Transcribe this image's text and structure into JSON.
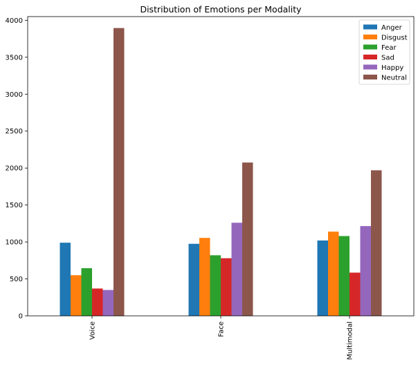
{
  "chart_data": {
    "type": "bar",
    "title": "Distribution of Emotions per Modality",
    "xlabel": "",
    "ylabel": "",
    "categories": [
      "Voice",
      "Face",
      "Multimodal"
    ],
    "ylim": [
      0,
      4050
    ],
    "yticks": [
      0,
      500,
      1000,
      1500,
      2000,
      2500,
      3000,
      3500,
      4000
    ],
    "grid": false,
    "legend_position": "top-right",
    "series": [
      {
        "name": "Anger",
        "color": "#1f77b4",
        "values": [
          990,
          975,
          1020
        ]
      },
      {
        "name": "Disgust",
        "color": "#ff7f0e",
        "values": [
          550,
          1055,
          1140
        ]
      },
      {
        "name": "Fear",
        "color": "#2ca02c",
        "values": [
          645,
          820,
          1080
        ]
      },
      {
        "name": "Sad",
        "color": "#d62728",
        "values": [
          370,
          780,
          585
        ]
      },
      {
        "name": "Happy",
        "color": "#9467bd",
        "values": [
          350,
          1260,
          1215
        ]
      },
      {
        "name": "Neutral",
        "color": "#8c564b",
        "values": [
          3895,
          2075,
          1970
        ]
      }
    ]
  }
}
